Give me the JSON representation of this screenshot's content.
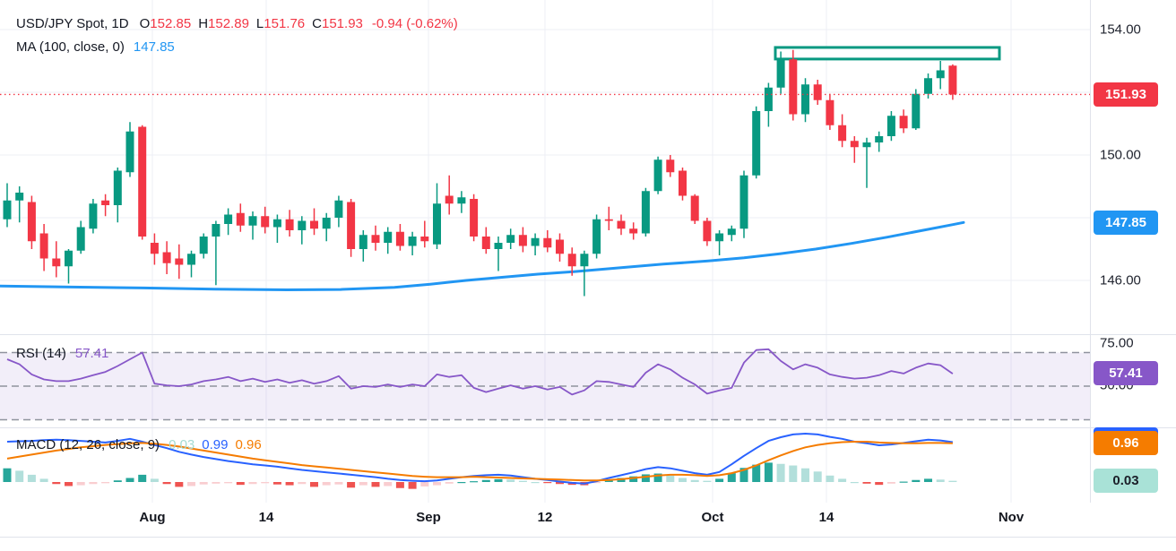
{
  "colors": {
    "background": "#ffffff",
    "text": "#131722",
    "grid": "#edeff6",
    "separator": "#e0e3eb",
    "candle_up": "#089981",
    "candle_down": "#f23645",
    "ma_line": "#2196f3",
    "last_price": "#f23645",
    "rsi_line": "#8757c8",
    "rsi_band_fill": "rgba(126,87,194,0.10)",
    "rsi_dash": "#8f939e",
    "macd_line": "#2962ff",
    "signal_line": "#f57c00",
    "hist_up_dark": "#26a69a",
    "hist_up_light": "#b2dfdb",
    "hist_down_dark": "#ef5350",
    "hist_down_light": "#f9cdd0",
    "badge_teal_bg": "#a9e2d7"
  },
  "legend": {
    "price_row": [
      {
        "text": "USD/JPY Spot, 1D",
        "color": "#131722",
        "gap": 12
      },
      {
        "text": "O",
        "color": "#131722",
        "gap": 0
      },
      {
        "text": "152.85",
        "color": "#f23645",
        "gap": 8
      },
      {
        "text": "H",
        "color": "#131722",
        "gap": 0
      },
      {
        "text": "152.89",
        "color": "#f23645",
        "gap": 8
      },
      {
        "text": "L",
        "color": "#131722",
        "gap": 0
      },
      {
        "text": "151.76",
        "color": "#f23645",
        "gap": 8
      },
      {
        "text": "C",
        "color": "#131722",
        "gap": 0
      },
      {
        "text": "151.93",
        "color": "#f23645",
        "gap": 10
      },
      {
        "text": "-0.94 (-0.62%)",
        "color": "#f23645",
        "gap": 0
      }
    ],
    "ma_row": [
      {
        "text": "MA (100, close, 0)",
        "color": "#131722",
        "gap": 10
      },
      {
        "text": "147.85",
        "color": "#2196f3",
        "gap": 0
      }
    ],
    "rsi_row": [
      {
        "text": "RSI (14)",
        "color": "#131722",
        "gap": 10
      },
      {
        "text": "57.41",
        "color": "#8757c8",
        "gap": 0
      }
    ],
    "macd_row": [
      {
        "text": "MACD (12, 26, close, 9)",
        "color": "#131722",
        "gap": 10
      },
      {
        "text": "0.03",
        "color": "#a5dcd2",
        "gap": 8
      },
      {
        "text": "0.99",
        "color": "#2962ff",
        "gap": 8
      },
      {
        "text": "0.96",
        "color": "#f57c00",
        "gap": 0
      }
    ]
  },
  "price_axis": {
    "price_labels": [
      "154.00",
      "150.00",
      "146.00"
    ],
    "price_label_values": [
      154.0,
      150.0,
      146.0
    ],
    "rsi_labels": [
      "75.00",
      "50.00"
    ],
    "rsi_label_values": [
      75.0,
      50.0
    ],
    "badges": [
      {
        "text": "151.93",
        "panel": "price",
        "value": 151.93,
        "bg": "#f23645",
        "fg": "#ffffff"
      },
      {
        "text": "147.85",
        "panel": "price",
        "value": 147.85,
        "bg": "#2196f3",
        "fg": "#ffffff"
      },
      {
        "text": "57.41",
        "panel": "rsi",
        "value": 57.41,
        "bg": "#8757c8",
        "fg": "#ffffff"
      },
      {
        "text": "0.99",
        "panel": "macd",
        "value": 0.99,
        "bg": "#2962ff",
        "fg": "#ffffff",
        "offset": -3
      },
      {
        "text": "0.96",
        "panel": "macd",
        "value": 0.96,
        "bg": "#f57c00",
        "fg": "#ffffff"
      },
      {
        "text": "0.03",
        "panel": "macd",
        "value": 0.03,
        "bg": "#a9e2d7",
        "fg": "#1b1f29"
      }
    ]
  },
  "time_axis": {
    "labels": [
      {
        "text": "Aug",
        "x": 170
      },
      {
        "text": "14",
        "x": 297
      },
      {
        "text": "Sep",
        "x": 478
      },
      {
        "text": "12",
        "x": 608
      },
      {
        "text": "Oct",
        "x": 795
      },
      {
        "text": "14",
        "x": 922
      },
      {
        "text": "Nov",
        "x": 1128
      }
    ]
  },
  "chart_data": [
    {
      "type": "candlestick",
      "title": "USD/JPY Spot, 1D",
      "last_ohlc": {
        "open": 152.85,
        "high": 152.89,
        "low": 151.76,
        "close": 151.93,
        "change": "-0.94 (-0.62%)"
      },
      "ylim": [
        144.3,
        154.7
      ],
      "grid_prices": [
        154,
        152,
        150,
        148,
        146
      ],
      "last_price_line": 151.93,
      "resistance_box": {
        "from_x": 865,
        "to_x": 1115,
        "top_price": 153.43,
        "bottom_price": 153.06
      },
      "ma100": {
        "label": "MA (100, close, 0)",
        "last": 147.85,
        "points": [
          [
            0,
            145.82
          ],
          [
            80,
            145.79
          ],
          [
            160,
            145.76
          ],
          [
            240,
            145.72
          ],
          [
            320,
            145.7
          ],
          [
            380,
            145.71
          ],
          [
            440,
            145.78
          ],
          [
            480,
            145.88
          ],
          [
            520,
            146.0
          ],
          [
            560,
            146.1
          ],
          [
            600,
            146.2
          ],
          [
            640,
            146.28
          ],
          [
            690,
            146.4
          ],
          [
            740,
            146.52
          ],
          [
            790,
            146.62
          ],
          [
            830,
            146.72
          ],
          [
            870,
            146.85
          ],
          [
            910,
            147.0
          ],
          [
            950,
            147.18
          ],
          [
            990,
            147.38
          ],
          [
            1030,
            147.6
          ],
          [
            1063,
            147.78
          ],
          [
            1075,
            147.85
          ]
        ]
      },
      "candles": [
        [
          147.95,
          149.1,
          147.7,
          148.55
        ],
        [
          148.55,
          149.0,
          147.85,
          148.8
        ],
        [
          148.5,
          148.7,
          147.0,
          147.25
        ],
        [
          147.5,
          147.8,
          146.3,
          146.7
        ],
        [
          146.7,
          147.25,
          146.1,
          146.45
        ],
        [
          146.45,
          147.0,
          145.9,
          146.95
        ],
        [
          146.95,
          147.9,
          146.85,
          147.7
        ],
        [
          147.65,
          148.6,
          147.5,
          148.45
        ],
        [
          148.55,
          148.75,
          148.05,
          148.4
        ],
        [
          148.4,
          149.6,
          147.85,
          149.5
        ],
        [
          149.45,
          151.05,
          149.3,
          150.75
        ],
        [
          150.9,
          150.95,
          147.3,
          147.4
        ],
        [
          147.2,
          147.5,
          146.5,
          146.85
        ],
        [
          146.9,
          147.25,
          146.2,
          146.55
        ],
        [
          146.7,
          147.15,
          146.05,
          146.5
        ],
        [
          146.5,
          146.95,
          146.1,
          146.85
        ],
        [
          146.85,
          147.5,
          146.7,
          147.4
        ],
        [
          147.4,
          147.9,
          145.85,
          147.8
        ],
        [
          147.8,
          148.3,
          147.45,
          148.1
        ],
        [
          148.15,
          148.45,
          147.55,
          147.75
        ],
        [
          147.75,
          148.2,
          147.3,
          148.05
        ],
        [
          148.05,
          148.35,
          147.5,
          147.7
        ],
        [
          147.7,
          148.1,
          147.2,
          147.95
        ],
        [
          147.95,
          148.25,
          147.4,
          147.6
        ],
        [
          147.6,
          148.05,
          147.15,
          147.9
        ],
        [
          147.9,
          148.3,
          147.45,
          147.65
        ],
        [
          147.65,
          148.15,
          147.25,
          148.0
        ],
        [
          148.0,
          148.7,
          147.7,
          148.55
        ],
        [
          148.5,
          148.6,
          146.75,
          147.0
        ],
        [
          147.0,
          147.6,
          146.6,
          147.45
        ],
        [
          147.45,
          147.75,
          146.95,
          147.2
        ],
        [
          147.2,
          147.7,
          146.85,
          147.55
        ],
        [
          147.55,
          147.8,
          146.95,
          147.1
        ],
        [
          147.1,
          147.55,
          146.8,
          147.4
        ],
        [
          147.4,
          147.9,
          147.05,
          147.25
        ],
        [
          147.15,
          149.1,
          147.0,
          148.45
        ],
        [
          148.7,
          149.35,
          148.1,
          148.45
        ],
        [
          148.45,
          148.85,
          148.15,
          148.65
        ],
        [
          148.6,
          148.75,
          147.25,
          147.4
        ],
        [
          147.4,
          147.7,
          146.85,
          147.0
        ],
        [
          147.0,
          147.4,
          146.3,
          147.2
        ],
        [
          147.2,
          147.65,
          147.0,
          147.45
        ],
        [
          147.45,
          147.7,
          146.9,
          147.1
        ],
        [
          147.1,
          147.5,
          146.8,
          147.35
        ],
        [
          147.35,
          147.6,
          146.9,
          147.05
        ],
        [
          147.3,
          147.5,
          146.6,
          146.85
        ],
        [
          146.85,
          147.05,
          146.15,
          146.45
        ],
        [
          146.45,
          146.95,
          145.5,
          146.85
        ],
        [
          146.85,
          148.1,
          146.7,
          147.95
        ],
        [
          147.95,
          148.35,
          147.6,
          147.9
        ],
        [
          147.9,
          148.1,
          147.45,
          147.65
        ],
        [
          147.65,
          147.85,
          147.3,
          147.5
        ],
        [
          147.5,
          148.95,
          147.4,
          148.85
        ],
        [
          148.85,
          149.95,
          148.75,
          149.85
        ],
        [
          149.85,
          150.0,
          149.3,
          149.45
        ],
        [
          149.5,
          149.6,
          148.55,
          148.7
        ],
        [
          148.7,
          148.75,
          147.8,
          147.9
        ],
        [
          147.9,
          148.0,
          147.1,
          147.25
        ],
        [
          147.25,
          147.6,
          146.8,
          147.5
        ],
        [
          147.45,
          147.75,
          147.25,
          147.65
        ],
        [
          147.65,
          149.5,
          147.35,
          149.35
        ],
        [
          149.35,
          151.55,
          149.25,
          151.4
        ],
        [
          151.4,
          152.3,
          150.9,
          152.15
        ],
        [
          152.15,
          153.3,
          151.95,
          153.05
        ],
        [
          153.05,
          153.35,
          151.1,
          151.3
        ],
        [
          151.3,
          152.45,
          151.05,
          152.25
        ],
        [
          152.25,
          152.4,
          151.6,
          151.75
        ],
        [
          151.75,
          151.95,
          150.8,
          150.95
        ],
        [
          150.95,
          151.3,
          150.25,
          150.45
        ],
        [
          150.45,
          150.6,
          149.75,
          150.25
        ],
        [
          150.25,
          150.55,
          148.95,
          150.4
        ],
        [
          150.4,
          150.75,
          150.1,
          150.6
        ],
        [
          150.6,
          151.4,
          150.45,
          151.25
        ],
        [
          151.25,
          151.45,
          150.7,
          150.85
        ],
        [
          150.85,
          152.1,
          150.8,
          151.95
        ],
        [
          151.95,
          152.6,
          151.8,
          152.45
        ],
        [
          152.45,
          153.0,
          152.1,
          152.7
        ],
        [
          152.85,
          152.89,
          151.76,
          151.93
        ]
      ]
    },
    {
      "type": "line",
      "name": "RSI (14)",
      "last": 57.41,
      "upper_band": 70,
      "middle_band": 50,
      "lower_band": 30,
      "values": [
        66,
        63,
        57,
        54,
        53,
        53,
        54.5,
        56.5,
        58.5,
        62,
        66,
        70,
        51.5,
        50.5,
        50,
        51,
        53,
        54,
        55.5,
        53,
        54.5,
        52.5,
        54,
        52,
        53.5,
        51.5,
        53,
        56,
        48.5,
        50,
        49.5,
        51,
        49.5,
        51,
        50,
        57,
        55.5,
        56.5,
        49,
        46.5,
        48.5,
        50.5,
        48.5,
        50,
        48,
        49.5,
        45,
        47.5,
        53,
        52.5,
        51,
        49.5,
        58,
        63,
        60,
        55,
        51,
        45.5,
        47.5,
        49,
        64,
        71.5,
        72,
        65,
        60,
        63,
        61,
        57,
        55.5,
        54.5,
        55,
        56.5,
        59,
        57.5,
        61,
        63.5,
        62.5,
        57.41
      ]
    },
    {
      "type": "macd",
      "name": "MACD (12, 26, close, 9)",
      "last_values": {
        "histogram": 0.03,
        "macd": 0.99,
        "signal": 0.96
      },
      "histogram": [
        0.34,
        0.28,
        0.18,
        0.08,
        -0.05,
        -0.1,
        -0.08,
        -0.05,
        -0.03,
        0.04,
        0.1,
        0.18,
        0.08,
        -0.05,
        -0.12,
        -0.1,
        -0.06,
        -0.04,
        -0.03,
        -0.07,
        -0.05,
        -0.03,
        -0.06,
        -0.08,
        -0.05,
        -0.12,
        -0.08,
        -0.06,
        -0.14,
        -0.08,
        -0.12,
        -0.1,
        -0.15,
        -0.17,
        -0.11,
        -0.08,
        -0.04,
        0.0,
        0.02,
        0.05,
        0.07,
        0.06,
        0.03,
        0.0,
        -0.02,
        -0.05,
        -0.07,
        -0.08,
        -0.02,
        0.05,
        0.1,
        0.14,
        0.19,
        0.21,
        0.16,
        0.1,
        0.05,
        0.03,
        0.08,
        0.22,
        0.35,
        0.43,
        0.48,
        0.45,
        0.41,
        0.34,
        0.26,
        0.16,
        0.08,
        0.0,
        -0.04,
        -0.07,
        -0.04,
        0.01,
        0.05,
        0.08,
        0.06,
        0.03
      ],
      "macd": [
        1.0,
        1.01,
        1.02,
        1.04,
        1.05,
        1.04,
        1.02,
        1.0,
        0.98,
        1.02,
        1.07,
        1.0,
        0.92,
        0.84,
        0.75,
        0.68,
        0.62,
        0.57,
        0.52,
        0.48,
        0.44,
        0.41,
        0.38,
        0.34,
        0.3,
        0.27,
        0.24,
        0.21,
        0.18,
        0.15,
        0.12,
        0.08,
        0.05,
        0.03,
        0.02,
        0.04,
        0.08,
        0.12,
        0.15,
        0.17,
        0.18,
        0.16,
        0.12,
        0.08,
        0.05,
        0.01,
        -0.02,
        -0.04,
        0.02,
        0.1,
        0.17,
        0.24,
        0.32,
        0.37,
        0.34,
        0.28,
        0.22,
        0.18,
        0.25,
        0.44,
        0.65,
        0.84,
        1.02,
        1.11,
        1.18,
        1.2,
        1.18,
        1.12,
        1.07,
        1.0,
        0.96,
        0.91,
        0.93,
        0.97,
        1.01,
        1.05,
        1.03,
        0.99
      ],
      "signal": [
        0.58,
        0.63,
        0.68,
        0.73,
        0.78,
        0.82,
        0.86,
        0.89,
        0.92,
        0.94,
        0.96,
        0.97,
        0.95,
        0.92,
        0.88,
        0.83,
        0.78,
        0.73,
        0.68,
        0.63,
        0.58,
        0.54,
        0.5,
        0.46,
        0.42,
        0.39,
        0.36,
        0.33,
        0.3,
        0.27,
        0.24,
        0.21,
        0.18,
        0.15,
        0.13,
        0.12,
        0.12,
        0.12,
        0.13,
        0.12,
        0.11,
        0.1,
        0.09,
        0.08,
        0.07,
        0.06,
        0.05,
        0.04,
        0.04,
        0.05,
        0.07,
        0.1,
        0.13,
        0.16,
        0.18,
        0.18,
        0.17,
        0.15,
        0.17,
        0.22,
        0.3,
        0.41,
        0.54,
        0.66,
        0.77,
        0.86,
        0.92,
        0.96,
        0.99,
        1.0,
        1.0,
        0.98,
        0.97,
        0.96,
        0.96,
        0.97,
        0.97,
        0.96
      ]
    }
  ]
}
